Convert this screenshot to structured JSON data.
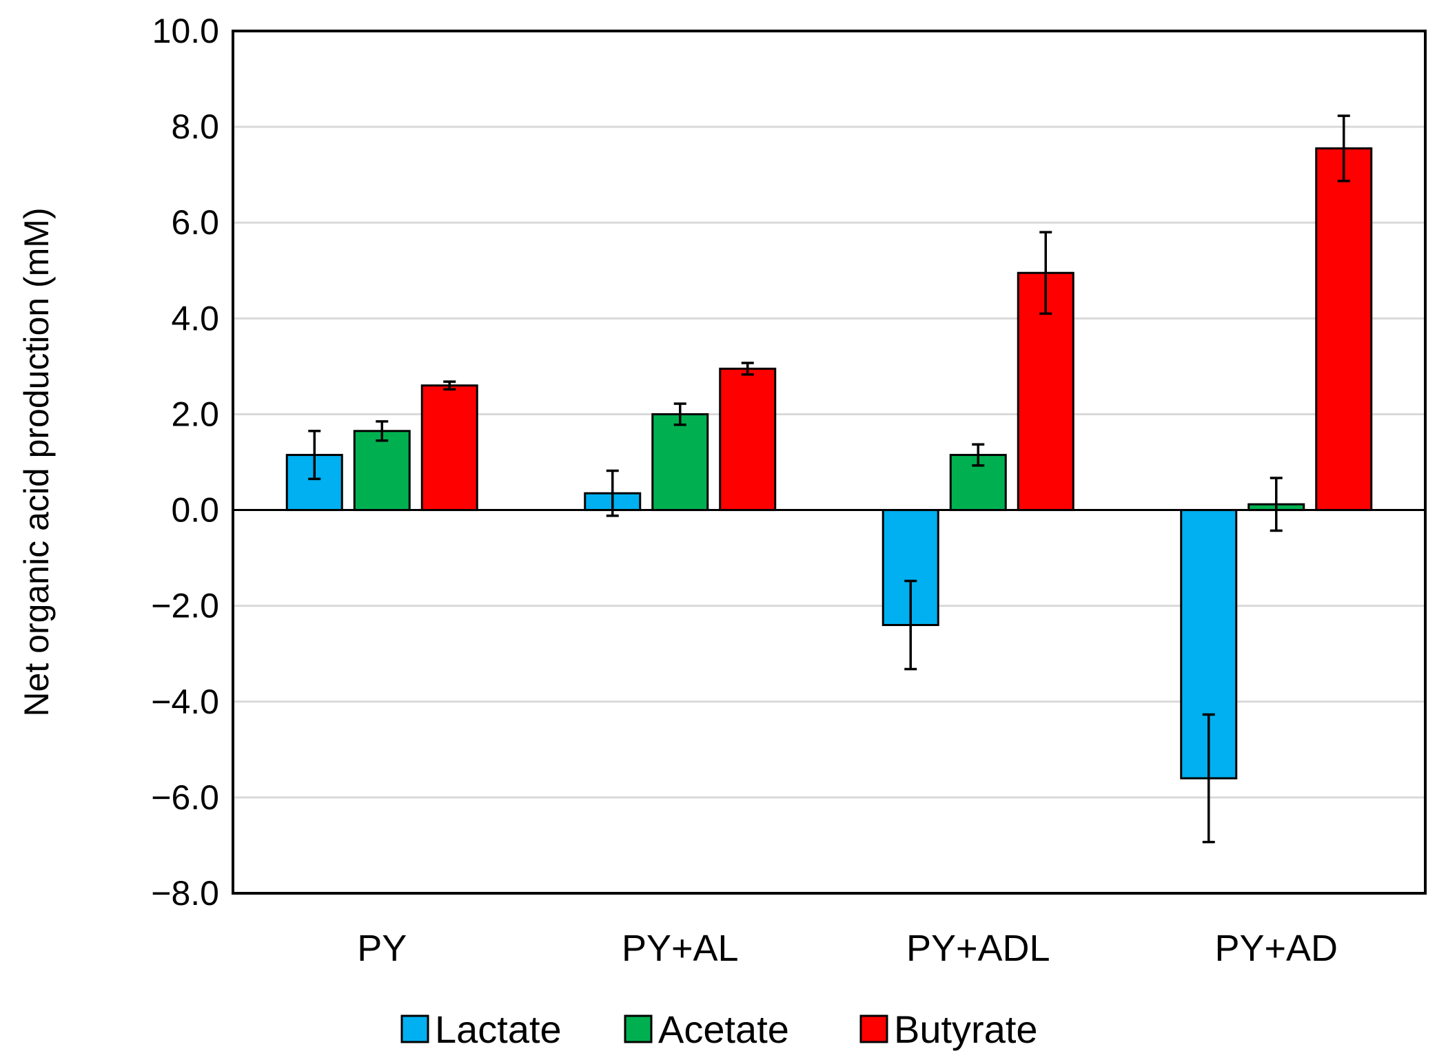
{
  "chart_data": {
    "type": "bar",
    "title": "",
    "xlabel": "",
    "ylabel": "Net organic acid production (mM)",
    "ylim": [
      -8,
      10
    ],
    "yticks": [
      -8,
      -6,
      -4,
      -2,
      0,
      2,
      4,
      6,
      8,
      10
    ],
    "ytick_labels": [
      "−8.0",
      "−6.0",
      "−4.0",
      "−2.0",
      "0.0",
      "2.0",
      "4.0",
      "6.0",
      "8.0",
      "10.0"
    ],
    "grid": true,
    "legend_position": "bottom",
    "categories": [
      "PY",
      "PY+AL",
      "PY+ADL",
      "PY+AD"
    ],
    "series": [
      {
        "name": "Lactate",
        "color": "#00B0F0",
        "values": [
          1.15,
          0.35,
          -2.4,
          -5.6
        ],
        "errors": [
          0.5,
          0.47,
          0.92,
          1.33
        ]
      },
      {
        "name": "Acetate",
        "color": "#00B050",
        "values": [
          1.65,
          2.0,
          1.15,
          0.12
        ],
        "errors": [
          0.2,
          0.22,
          0.22,
          0.55
        ]
      },
      {
        "name": "Butyrate",
        "color": "#FF0000",
        "values": [
          2.6,
          2.95,
          4.95,
          7.55
        ],
        "errors": [
          0.08,
          0.12,
          0.85,
          0.68
        ]
      }
    ]
  }
}
